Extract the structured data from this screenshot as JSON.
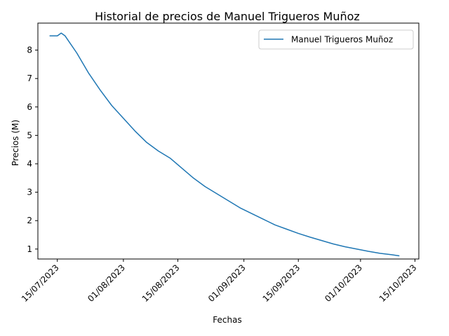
{
  "chart_data": {
    "type": "line",
    "title": "Historial de precios de Manuel Trigueros Muñoz",
    "xlabel": "Fechas",
    "ylabel": "Precios (M)",
    "x_ticks": [
      "2023-07-15",
      "2023-08-01",
      "2023-08-15",
      "2023-09-01",
      "2023-09-15",
      "2023-10-01",
      "2023-10-15"
    ],
    "x_tick_labels": [
      "15/07/2023",
      "01/08/2023",
      "15/08/2023",
      "01/09/2023",
      "15/09/2023",
      "01/10/2023",
      "15/10/2023"
    ],
    "xlim": [
      "2023-07-10",
      "2023-10-16"
    ],
    "y_ticks": [
      1,
      2,
      3,
      4,
      5,
      6,
      7,
      8
    ],
    "ylim": [
      0.65,
      8.95
    ],
    "grid": false,
    "legend_position": "top-right",
    "series": [
      {
        "name": "Manuel Trigueros Muñoz",
        "color": "#1f77b4",
        "points": [
          [
            "2023-07-13",
            8.5
          ],
          [
            "2023-07-15",
            8.5
          ],
          [
            "2023-07-16",
            8.6
          ],
          [
            "2023-07-17",
            8.5
          ],
          [
            "2023-07-18",
            8.3
          ],
          [
            "2023-07-20",
            7.9
          ],
          [
            "2023-07-23",
            7.2
          ],
          [
            "2023-07-26",
            6.6
          ],
          [
            "2023-07-29",
            6.05
          ],
          [
            "2023-08-01",
            5.6
          ],
          [
            "2023-08-04",
            5.15
          ],
          [
            "2023-08-07",
            4.75
          ],
          [
            "2023-08-10",
            4.45
          ],
          [
            "2023-08-13",
            4.2
          ],
          [
            "2023-08-16",
            3.85
          ],
          [
            "2023-08-19",
            3.5
          ],
          [
            "2023-08-22",
            3.2
          ],
          [
            "2023-08-25",
            2.95
          ],
          [
            "2023-08-28",
            2.7
          ],
          [
            "2023-08-31",
            2.45
          ],
          [
            "2023-09-03",
            2.25
          ],
          [
            "2023-09-06",
            2.05
          ],
          [
            "2023-09-09",
            1.85
          ],
          [
            "2023-09-12",
            1.7
          ],
          [
            "2023-09-15",
            1.55
          ],
          [
            "2023-09-18",
            1.42
          ],
          [
            "2023-09-21",
            1.3
          ],
          [
            "2023-09-24",
            1.18
          ],
          [
            "2023-09-27",
            1.08
          ],
          [
            "2023-09-30",
            1.0
          ],
          [
            "2023-10-03",
            0.92
          ],
          [
            "2023-10-06",
            0.85
          ],
          [
            "2023-10-09",
            0.8
          ],
          [
            "2023-10-11",
            0.76
          ]
        ]
      }
    ]
  }
}
